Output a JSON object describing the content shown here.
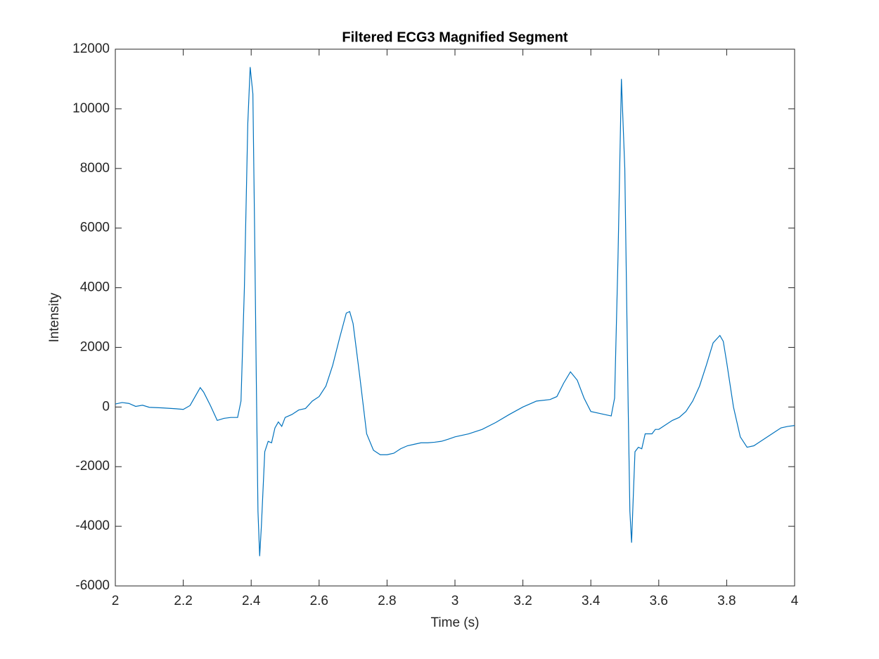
{
  "chart_data": {
    "type": "line",
    "title": "Filtered ECG3 Magnified Segment",
    "x_label": "Time (s)",
    "y_label": "Intensity",
    "x": [
      2.0,
      2.02,
      2.04,
      2.06,
      2.08,
      2.1,
      2.14,
      2.18,
      2.2,
      2.22,
      2.24,
      2.25,
      2.26,
      2.28,
      2.3,
      2.32,
      2.34,
      2.36,
      2.37,
      2.38,
      2.39,
      2.397,
      2.405,
      2.41,
      2.415,
      2.42,
      2.425,
      2.43,
      2.44,
      2.45,
      2.46,
      2.47,
      2.48,
      2.49,
      2.5,
      2.52,
      2.54,
      2.56,
      2.58,
      2.6,
      2.62,
      2.64,
      2.66,
      2.68,
      2.69,
      2.7,
      2.72,
      2.74,
      2.76,
      2.78,
      2.8,
      2.82,
      2.84,
      2.86,
      2.88,
      2.9,
      2.92,
      2.94,
      2.96,
      2.98,
      3.0,
      3.04,
      3.08,
      3.12,
      3.16,
      3.2,
      3.24,
      3.28,
      3.3,
      3.32,
      3.34,
      3.36,
      3.38,
      3.4,
      3.44,
      3.46,
      3.47,
      3.48,
      3.49,
      3.5,
      3.51,
      3.515,
      3.52,
      3.525,
      3.53,
      3.54,
      3.55,
      3.56,
      3.58,
      3.59,
      3.6,
      3.62,
      3.64,
      3.66,
      3.68,
      3.7,
      3.72,
      3.74,
      3.76,
      3.78,
      3.79,
      3.8,
      3.82,
      3.84,
      3.86,
      3.88,
      3.9,
      3.92,
      3.94,
      3.96,
      3.98,
      4.0
    ],
    "series": [
      {
        "color": "#0072bd",
        "values": [
          100,
          150,
          120,
          20,
          60,
          -10,
          -30,
          -60,
          -80,
          50,
          450,
          650,
          500,
          50,
          -450,
          -380,
          -350,
          -350,
          200,
          4000,
          9500,
          11400,
          10500,
          6000,
          1000,
          -3500,
          -5000,
          -4000,
          -1500,
          -1150,
          -1200,
          -700,
          -500,
          -650,
          -350,
          -250,
          -100,
          -50,
          200,
          350,
          700,
          1400,
          2300,
          3150,
          3200,
          2800,
          1000,
          -900,
          -1450,
          -1600,
          -1600,
          -1550,
          -1400,
          -1300,
          -1250,
          -1200,
          -1200,
          -1180,
          -1150,
          -1080,
          -1000,
          -900,
          -750,
          -520,
          -250,
          0,
          200,
          250,
          350,
          800,
          1180,
          900,
          300,
          -150,
          -250,
          -300,
          300,
          5000,
          11000,
          8000,
          0,
          -3500,
          -4550,
          -3000,
          -1500,
          -1350,
          -1400,
          -900,
          -900,
          -750,
          -750,
          -600,
          -450,
          -350,
          -150,
          200,
          700,
          1400,
          2150,
          2400,
          2200,
          1500,
          0,
          -1000,
          -1350,
          -1300,
          -1150,
          -1000,
          -850,
          -700,
          -650,
          -620
        ]
      }
    ],
    "xlim": [
      2,
      4
    ],
    "xticks": [
      2,
      2.2,
      2.4,
      2.6,
      2.8,
      3,
      3.2,
      3.4,
      3.6,
      3.8,
      4
    ],
    "ylim": [
      -6000,
      12000
    ],
    "yticks": [
      -6000,
      -4000,
      -2000,
      0,
      2000,
      4000,
      6000,
      8000,
      10000,
      12000
    ]
  }
}
